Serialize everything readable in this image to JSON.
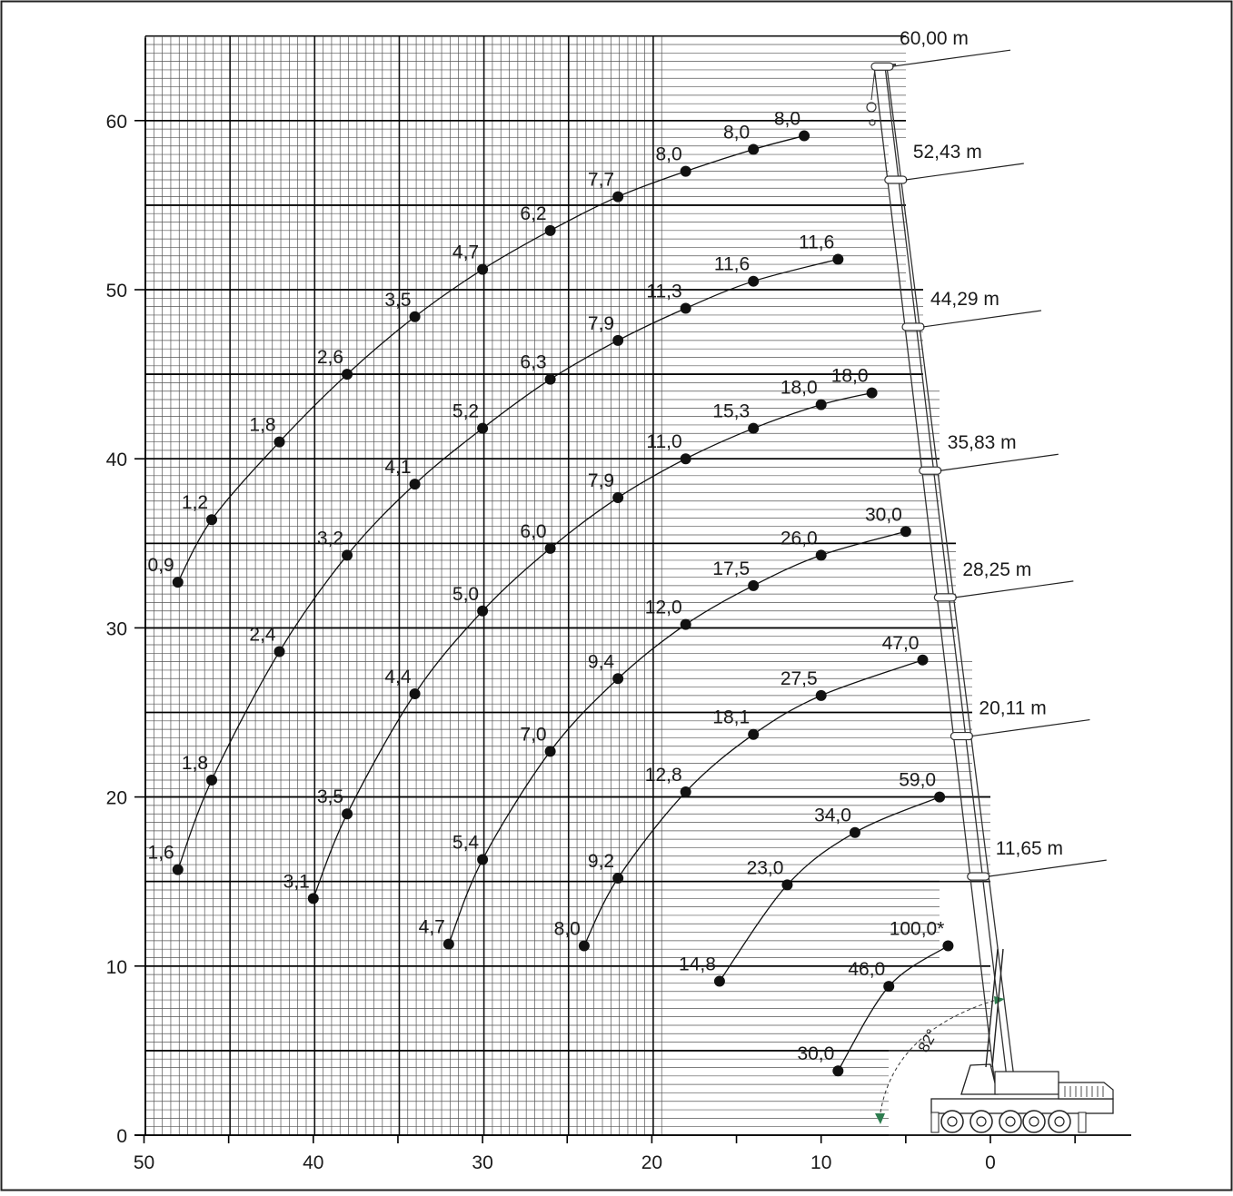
{
  "chart_data": {
    "type": "line",
    "title": "",
    "xlabel": "",
    "ylabel": "",
    "xlim": [
      50,
      -4
    ],
    "ylim": [
      0,
      65
    ],
    "grid": true,
    "x_ticks": [
      "50",
      "40",
      "30",
      "20",
      "10",
      "0"
    ],
    "x_tick_values": [
      50,
      40,
      30,
      20,
      10,
      0
    ],
    "y_ticks": [
      "0",
      "10",
      "20",
      "30",
      "40",
      "50",
      "60"
    ],
    "y_tick_values": [
      0,
      10,
      20,
      30,
      40,
      50,
      60
    ],
    "boom_lengths": [
      "60,00 m",
      "52,43 m",
      "44,29 m",
      "35,83 m",
      "28,25 m",
      "20,11 m",
      "11,65 m"
    ],
    "boom_length_heights": [
      63.2,
      56.5,
      47.8,
      39.3,
      31.8,
      23.6,
      15.3
    ],
    "angle_label": "82°",
    "series": [
      {
        "points": [
          {
            "x": 48,
            "y": 32.7,
            "label": "0,9"
          },
          {
            "x": 46,
            "y": 36.4,
            "label": "1,2"
          },
          {
            "x": 42,
            "y": 41.0,
            "label": "1,8"
          },
          {
            "x": 38,
            "y": 45.0,
            "label": "2,6"
          },
          {
            "x": 34,
            "y": 48.4,
            "label": "3,5"
          },
          {
            "x": 30,
            "y": 51.2,
            "label": "4,7"
          },
          {
            "x": 26,
            "y": 53.5,
            "label": "6,2"
          },
          {
            "x": 22,
            "y": 55.5,
            "label": "7,7"
          },
          {
            "x": 18,
            "y": 57.0,
            "label": "8,0"
          },
          {
            "x": 14,
            "y": 58.3,
            "label": "8,0"
          },
          {
            "x": 11,
            "y": 59.1,
            "label": "8,0"
          }
        ]
      },
      {
        "points": [
          {
            "x": 48,
            "y": 15.7,
            "label": "1,6"
          },
          {
            "x": 46,
            "y": 21.0,
            "label": "1,8"
          },
          {
            "x": 42,
            "y": 28.6,
            "label": "2,4"
          },
          {
            "x": 38,
            "y": 34.3,
            "label": "3,2"
          },
          {
            "x": 34,
            "y": 38.5,
            "label": "4,1"
          },
          {
            "x": 30,
            "y": 41.8,
            "label": "5,2"
          },
          {
            "x": 26,
            "y": 44.7,
            "label": "6,3"
          },
          {
            "x": 22,
            "y": 47.0,
            "label": "7,9"
          },
          {
            "x": 18,
            "y": 48.9,
            "label": "11,3"
          },
          {
            "x": 14,
            "y": 50.5,
            "label": "11,6"
          },
          {
            "x": 9,
            "y": 51.8,
            "label": "11,6"
          }
        ]
      },
      {
        "points": [
          {
            "x": 40,
            "y": 14.0,
            "label": "3,1"
          },
          {
            "x": 38,
            "y": 19.0,
            "label": "3,5"
          },
          {
            "x": 34,
            "y": 26.1,
            "label": "4,4"
          },
          {
            "x": 30,
            "y": 31.0,
            "label": "5,0"
          },
          {
            "x": 26,
            "y": 34.7,
            "label": "6,0"
          },
          {
            "x": 22,
            "y": 37.7,
            "label": "7,9"
          },
          {
            "x": 18,
            "y": 40.0,
            "label": "11,0"
          },
          {
            "x": 14,
            "y": 41.8,
            "label": "15,3"
          },
          {
            "x": 10,
            "y": 43.2,
            "label": "18,0"
          },
          {
            "x": 7,
            "y": 43.9,
            "label": "18,0"
          }
        ]
      },
      {
        "points": [
          {
            "x": 32,
            "y": 11.3,
            "label": "4,7"
          },
          {
            "x": 30,
            "y": 16.3,
            "label": "5,4"
          },
          {
            "x": 26,
            "y": 22.7,
            "label": "7,0"
          },
          {
            "x": 22,
            "y": 27.0,
            "label": "9,4"
          },
          {
            "x": 18,
            "y": 30.2,
            "label": "12,0"
          },
          {
            "x": 14,
            "y": 32.5,
            "label": "17,5"
          },
          {
            "x": 10,
            "y": 34.3,
            "label": "26,0"
          },
          {
            "x": 5,
            "y": 35.7,
            "label": "30,0"
          }
        ]
      },
      {
        "points": [
          {
            "x": 24,
            "y": 11.2,
            "label": "8,0"
          },
          {
            "x": 22,
            "y": 15.2,
            "label": "9,2"
          },
          {
            "x": 18,
            "y": 20.3,
            "label": "12,8"
          },
          {
            "x": 14,
            "y": 23.7,
            "label": "18,1"
          },
          {
            "x": 10,
            "y": 26.0,
            "label": "27,5"
          },
          {
            "x": 4,
            "y": 28.1,
            "label": "47,0"
          }
        ]
      },
      {
        "points": [
          {
            "x": 16,
            "y": 9.1,
            "label": "14,8"
          },
          {
            "x": 12,
            "y": 14.8,
            "label": "23,0"
          },
          {
            "x": 8,
            "y": 17.9,
            "label": "34,0"
          },
          {
            "x": 3,
            "y": 20.0,
            "label": "59,0"
          }
        ]
      },
      {
        "points": [
          {
            "x": 9,
            "y": 3.8,
            "label": "30,0"
          },
          {
            "x": 6,
            "y": 8.8,
            "label": "46,0"
          },
          {
            "x": 2.5,
            "y": 11.2,
            "label": "100,0*"
          }
        ]
      }
    ]
  }
}
